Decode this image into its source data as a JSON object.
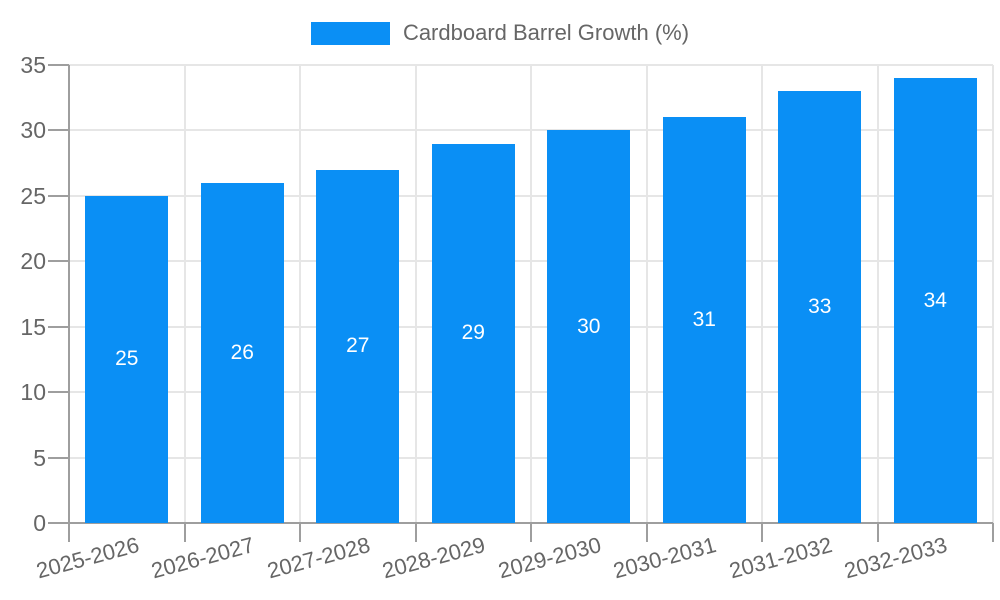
{
  "chart_data": {
    "type": "bar",
    "title": "Cardboard Barrel Growth (%)",
    "categories": [
      "2025-2026",
      "2026-2027",
      "2027-2028",
      "2028-2029",
      "2029-2030",
      "2030-2031",
      "2031-2032",
      "2032-2033"
    ],
    "series": [
      {
        "name": "Cardboard Barrel Growth (%)",
        "values": [
          25,
          26,
          27,
          29,
          30,
          31,
          33,
          34
        ]
      }
    ],
    "value_labels": [
      "25",
      "26",
      "27",
      "29",
      "30",
      "31",
      "33",
      "34"
    ],
    "xlabel": "",
    "ylabel": "",
    "ylim": [
      0,
      35
    ],
    "yticks": [
      0,
      5,
      10,
      15,
      20,
      25,
      30,
      35
    ],
    "grid": true,
    "legend_position": "top-center",
    "x_label_rotation_deg": -15,
    "colors": {
      "bar": "#0a8ff5",
      "value_label": "#ffffff",
      "axis_line": "#9e9e9e",
      "gridline": "#e6e6e6",
      "tick_label": "#666666",
      "background": "#ffffff"
    }
  },
  "legend": {
    "label": "Cardboard Barrel Growth (%)",
    "swatch_color": "#0a8ff5"
  }
}
